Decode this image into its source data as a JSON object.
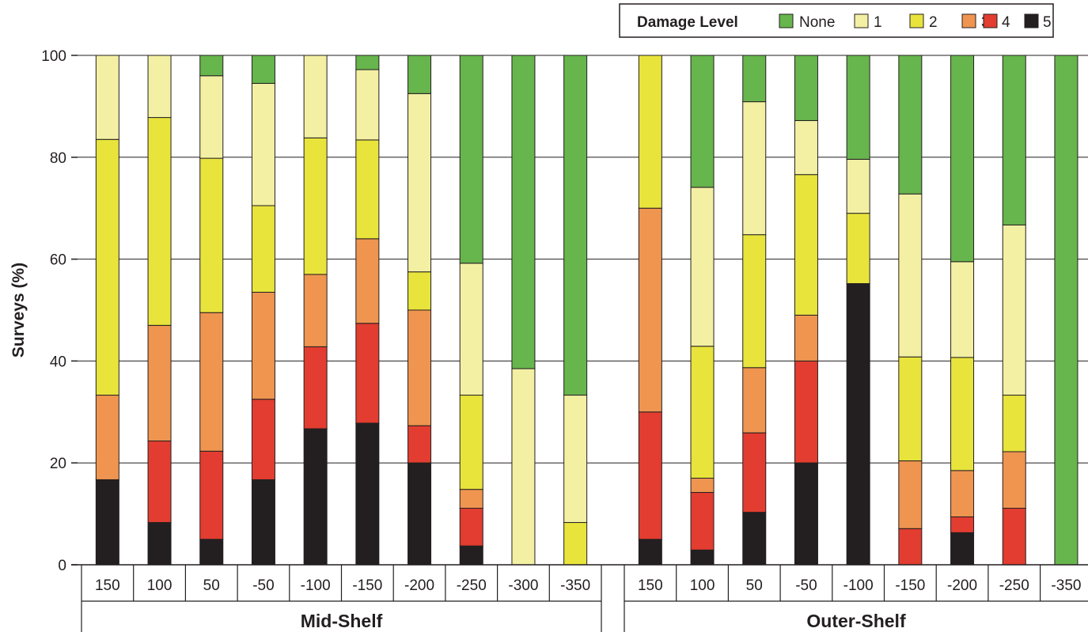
{
  "chart_data": {
    "type": "bar",
    "stacked": true,
    "ylabel": "Surveys (%)",
    "ylim": [
      0,
      100
    ],
    "yticks": [
      0,
      20,
      40,
      60,
      80,
      100
    ],
    "grid": true,
    "legend": {
      "title": "Damage Level",
      "position": "top-right",
      "entries": [
        "None",
        "1",
        "2",
        "3",
        "4",
        "5"
      ]
    },
    "colors": {
      "5": "#231f20",
      "4": "#e23d30",
      "3": "#ef9550",
      "2": "#e8e43c",
      "1": "#f3f0a4",
      "None": "#67b54d"
    },
    "stack_order": [
      "5",
      "4",
      "3",
      "2",
      "1",
      "None"
    ],
    "groups": [
      {
        "name": "Mid-Shelf",
        "categories": [
          "150",
          "100",
          "50",
          "-50",
          "-100",
          "-150",
          "-200",
          "-250",
          "-300",
          "-350"
        ],
        "series": [
          {
            "name": "5",
            "values": [
              16.7,
              8.3,
              5.0,
              16.7,
              26.7,
              27.8,
              20.0,
              3.7,
              0,
              0
            ]
          },
          {
            "name": "4",
            "values": [
              0,
              16.0,
              17.3,
              15.8,
              16.1,
              19.6,
              7.3,
              7.4,
              0,
              0
            ]
          },
          {
            "name": "3",
            "values": [
              16.6,
              22.7,
              27.2,
              21.0,
              14.2,
              16.6,
              22.7,
              3.7,
              0,
              0
            ]
          },
          {
            "name": "2",
            "values": [
              50.2,
              40.8,
              30.3,
              17.0,
              26.8,
              19.4,
              7.5,
              18.5,
              0,
              8.3
            ]
          },
          {
            "name": "1",
            "values": [
              16.5,
              12.2,
              16.2,
              24.0,
              16.2,
              13.8,
              35.0,
              25.9,
              38.5,
              25.0
            ]
          },
          {
            "name": "None",
            "values": [
              0,
              0,
              4.0,
              5.5,
              0,
              2.8,
              7.5,
              40.8,
              61.5,
              66.7
            ]
          }
        ]
      },
      {
        "name": "Outer-Shelf",
        "categories": [
          "150",
          "100",
          "50",
          "-50",
          "-100",
          "-150",
          "-200",
          "-250",
          "-350"
        ],
        "series": [
          {
            "name": "5",
            "values": [
              5.0,
              2.9,
              10.3,
              20.0,
              55.2,
              0,
              6.3,
              0,
              0
            ]
          },
          {
            "name": "4",
            "values": [
              25.0,
              11.3,
              15.6,
              20.0,
              0,
              7.1,
              3.1,
              11.1,
              0
            ]
          },
          {
            "name": "3",
            "values": [
              40.0,
              2.8,
              12.8,
              9.0,
              0,
              13.3,
              9.1,
              11.1,
              0
            ]
          },
          {
            "name": "2",
            "values": [
              30.0,
              25.9,
              26.1,
              27.6,
              13.8,
              20.4,
              22.2,
              11.1,
              0
            ]
          },
          {
            "name": "1",
            "values": [
              0,
              31.2,
              26.1,
              10.6,
              10.6,
              32.0,
              18.8,
              33.4,
              0
            ]
          },
          {
            "name": "None",
            "values": [
              0,
              25.9,
              9.1,
              12.8,
              20.4,
              27.2,
              40.5,
              33.3,
              100
            ]
          }
        ]
      }
    ]
  }
}
